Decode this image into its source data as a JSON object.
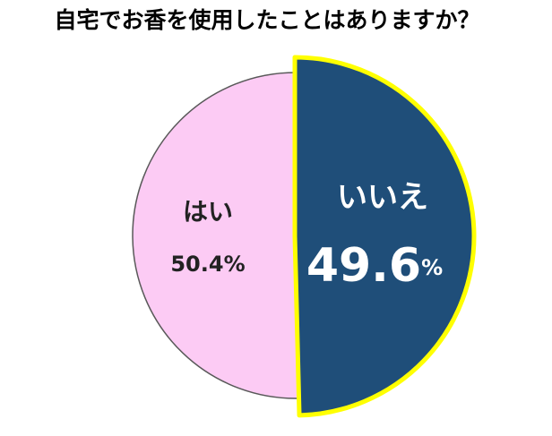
{
  "chart_data": {
    "type": "pie",
    "title": "自宅でお香を使用したことはありますか？",
    "categories": [
      "はい",
      "いいえ"
    ],
    "values": [
      50.4,
      49.6
    ],
    "value_labels": [
      "50.4%",
      "49.6%"
    ],
    "colors": [
      "#fccbf4",
      "#1f4e79"
    ]
  }
}
